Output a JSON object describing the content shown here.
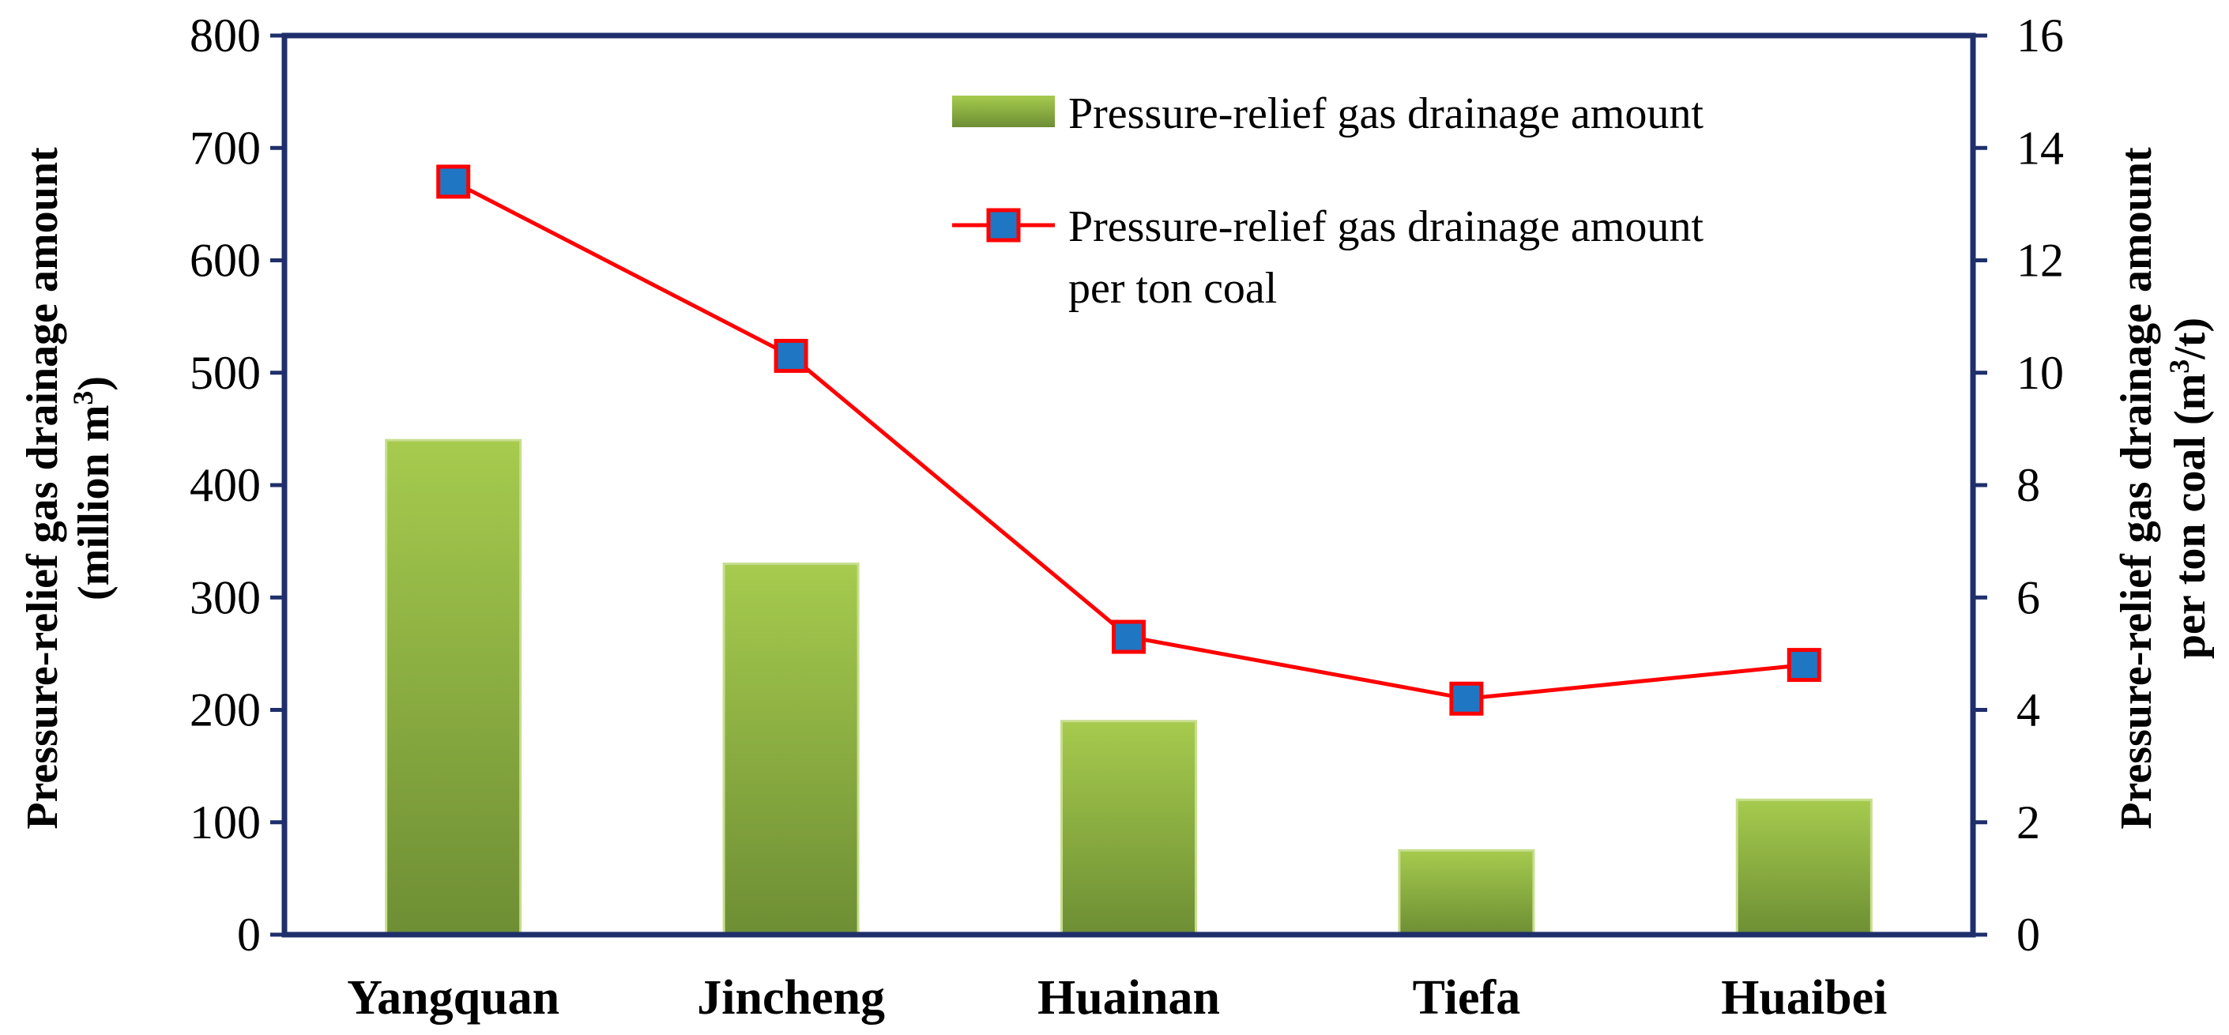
{
  "chart_data": {
    "type": "bar+line",
    "categories": [
      "Yangquan",
      "Jincheng",
      "Huainan",
      "Tiefa",
      "Huaibei"
    ],
    "series": [
      {
        "name": "Pressure-relief gas drainage amount",
        "type": "bar",
        "axis": "left",
        "values": [
          440,
          330,
          190,
          75,
          120
        ],
        "color": "#8bb13c"
      },
      {
        "name": "Pressure-relief gas drainage amount per ton coal",
        "type": "line",
        "axis": "right",
        "values": [
          13.4,
          10.3,
          5.3,
          4.2,
          4.8
        ],
        "line_color": "#ff0000",
        "marker_color": "#1f77c4"
      }
    ],
    "legend": {
      "bar_label": "Pressure-relief gas drainage amount",
      "line_label_line1": "Pressure-relief gas drainage amount",
      "line_label_line2": "per ton coal"
    },
    "y_left": {
      "label_line1": "Pressure-relief gas drainage amount",
      "label_line2_prefix": "(million m",
      "label_sup": "3",
      "label_line2_suffix": ")",
      "ylim": [
        0,
        800
      ],
      "ticks": [
        0,
        100,
        200,
        300,
        400,
        500,
        600,
        700,
        800
      ]
    },
    "y_right": {
      "label_line1": "Pressure-relief gas drainage amount",
      "label_line2_prefix": "per ton coal (m",
      "label_sup": "3",
      "label_line2_suffix": "/t)",
      "ylim": [
        0,
        16
      ],
      "ticks": [
        0,
        2,
        4,
        6,
        8,
        10,
        12,
        14,
        16
      ]
    },
    "axis_color": "#1f2f6b",
    "grid": false
  }
}
